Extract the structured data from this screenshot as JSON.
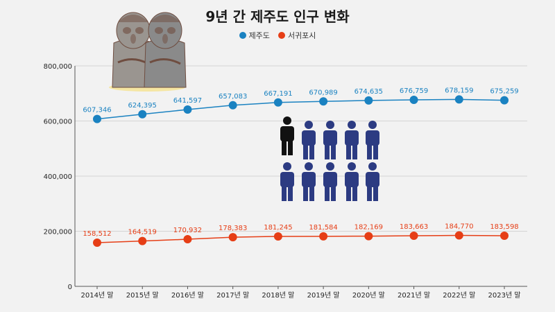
{
  "title": "9년 간 제주도 인구 변화",
  "colors": {
    "jeju": "#1a82c1",
    "seogwipo": "#e63e16",
    "person_featured": "#111111",
    "person": "#2c3b82"
  },
  "decorations": {
    "stone_statue": "dol-hareubang-icon",
    "people": "population-people-icon"
  },
  "chart_data": {
    "type": "line",
    "title": "9년 간 제주도 인구 변화",
    "categories": [
      "2014년 말",
      "2015년 말",
      "2016년 말",
      "2017년 말",
      "2018년 말",
      "2019년 말",
      "2020년 말",
      "2021년 말",
      "2022년 말",
      "2023년 말"
    ],
    "series": [
      {
        "name": "제주도",
        "color": "#1a82c1",
        "values": [
          607346,
          624395,
          641597,
          657083,
          667191,
          670989,
          674635,
          676759,
          678159,
          675259
        ],
        "labels": [
          "607,346",
          "624,395",
          "641,597",
          "657,083",
          "667,191",
          "670,989",
          "674,635",
          "676,759",
          "678,159",
          "675,259"
        ]
      },
      {
        "name": "서귀포시",
        "color": "#e63e16",
        "values": [
          158512,
          164519,
          170932,
          178383,
          181245,
          181584,
          182169,
          183663,
          184770,
          183598
        ],
        "labels": [
          "158,512",
          "164,519",
          "170,932",
          "178,383",
          "181,245",
          "181,584",
          "182,169",
          "183,663",
          "184,770",
          "183,598"
        ]
      }
    ],
    "ylim": [
      0,
      800000
    ],
    "yticks": [
      0,
      200000,
      400000,
      600000,
      800000
    ],
    "ytick_labels": [
      "0",
      "200,000",
      "400,000",
      "600,000",
      "800,000"
    ],
    "grid": true,
    "legend": "top-center"
  }
}
